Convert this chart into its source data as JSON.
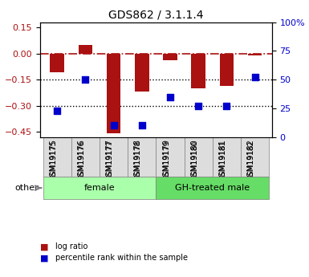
{
  "title": "GDS862 / 3.1.1.4",
  "samples": [
    "GSM19175",
    "GSM19176",
    "GSM19177",
    "GSM19178",
    "GSM19179",
    "GSM19180",
    "GSM19181",
    "GSM19182"
  ],
  "log_ratio": [
    -0.11,
    0.05,
    -0.46,
    -0.22,
    -0.04,
    -0.2,
    -0.185,
    -0.01
  ],
  "percentile_rank": [
    23,
    50,
    10,
    10,
    35,
    27,
    27,
    52
  ],
  "groups": [
    {
      "label": "female",
      "start": 0,
      "end": 3,
      "color": "#aaffaa"
    },
    {
      "label": "GH-treated male",
      "start": 4,
      "end": 7,
      "color": "#66dd66"
    }
  ],
  "bar_color": "#aa1111",
  "scatter_color": "#0000cc",
  "ylim_left": [
    -0.48,
    0.18
  ],
  "ylim_right": [
    0,
    100
  ],
  "yticks_left": [
    0.15,
    0,
    -0.15,
    -0.3,
    -0.45
  ],
  "yticks_right": [
    100,
    75,
    50,
    25,
    0
  ],
  "hline_y": 0,
  "dotted_lines": [
    -0.15,
    -0.3
  ],
  "background_color": "#ffffff",
  "legend_items": [
    {
      "label": "log ratio",
      "color": "#aa1111"
    },
    {
      "label": "percentile rank within the sample",
      "color": "#0000cc"
    }
  ]
}
